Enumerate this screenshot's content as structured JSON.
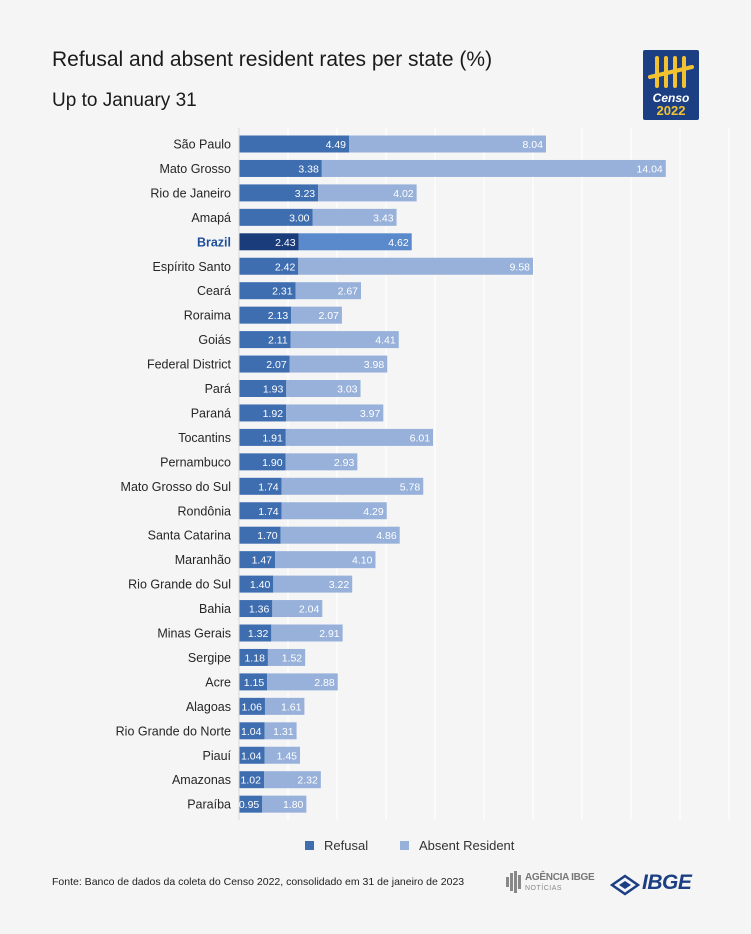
{
  "header": {
    "title": "Refusal and absent resident rates per state (%)",
    "subtitle": "Up to January 31"
  },
  "logo": {
    "text": "Censo",
    "year": "2022"
  },
  "colors": {
    "refusal": "#3e6db0",
    "absent": "#97b1da",
    "refusal_highlight": "#1b3c7b",
    "absent_highlight": "#5a8acb",
    "highlight_label": "#1f4f9a"
  },
  "chart_data": {
    "type": "bar",
    "orientation": "horizontal",
    "stacked": true,
    "categories": [
      "São Paulo",
      "Mato Grosso",
      "Rio de Janeiro",
      "Amapá",
      "Brazil",
      "Espírito Santo",
      "Ceará",
      "Roraima",
      "Goiás",
      "Federal District",
      "Pará",
      "Paraná",
      "Tocantins",
      "Pernambuco",
      "Mato Grosso do Sul",
      "Rondônia",
      "Santa Catarina",
      "Maranhão",
      "Rio Grande do Sul",
      "Bahia",
      "Minas Gerais",
      "Sergipe",
      "Acre",
      "Alagoas",
      "Rio Grande do Norte",
      "Piauí",
      "Amazonas",
      "Paraíba"
    ],
    "highlight": "Brazil",
    "series": [
      {
        "name": "Refusal",
        "values": [
          4.49,
          3.38,
          3.23,
          3.0,
          2.43,
          2.42,
          2.31,
          2.13,
          2.11,
          2.07,
          1.93,
          1.92,
          1.91,
          1.9,
          1.74,
          1.74,
          1.7,
          1.47,
          1.4,
          1.36,
          1.32,
          1.18,
          1.15,
          1.06,
          1.04,
          1.04,
          1.02,
          0.95
        ]
      },
      {
        "name": "Absent Resident",
        "values": [
          8.04,
          14.04,
          4.02,
          3.43,
          4.62,
          9.58,
          2.67,
          2.07,
          4.41,
          3.98,
          3.03,
          3.97,
          6.01,
          2.93,
          5.78,
          4.29,
          4.86,
          4.1,
          3.22,
          2.04,
          2.91,
          1.52,
          2.88,
          1.61,
          1.31,
          1.45,
          2.32,
          1.8
        ]
      }
    ],
    "xlim": [
      0,
      20
    ],
    "grid": true,
    "legend_position": "bottom"
  },
  "footer": {
    "source": "Fonte: Banco de dados da coleta do Censo 2022, consolidado em 31 de janeiro de 2023",
    "agencia_line1": "AGÊNCIA IBGE",
    "agencia_line2": "NOTÍCIAS",
    "ibge": "IBGE"
  }
}
